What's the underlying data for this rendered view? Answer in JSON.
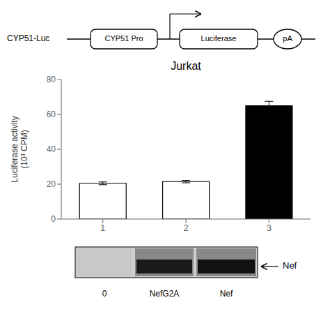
{
  "chart_data": {
    "type": "bar",
    "title": "Jurkat",
    "ylabel": "Luciferase activity\n(10³ CPM)",
    "categories": [
      "1",
      "2",
      "3"
    ],
    "values": [
      20.5,
      21.5,
      65.0
    ],
    "errors": [
      0.8,
      0.7,
      2.5
    ],
    "colors": [
      "white",
      "white",
      "black"
    ],
    "ylim": [
      0,
      80
    ],
    "yticks": [
      0,
      20,
      40,
      60,
      80
    ],
    "grid": false,
    "annotations": [
      "CYP51-Luc",
      "CYP51 Pro",
      "Luciferase",
      "pA",
      "Nef",
      "0",
      "NefG2A",
      "Nef"
    ]
  }
}
